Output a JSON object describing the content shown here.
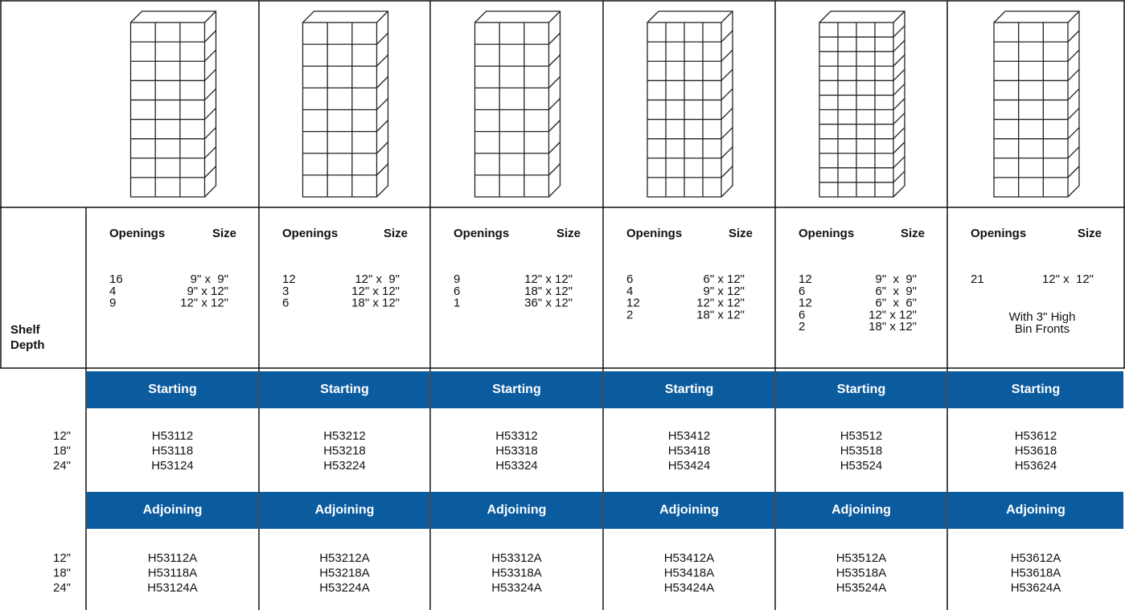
{
  "header": {
    "shelf_depth": [
      "Shelf",
      "Depth"
    ]
  },
  "columns": [
    {
      "openings_heading": "Openings",
      "size_heading": "Size",
      "openings": [
        {
          "count": "16",
          "size": "9\" x  9\""
        },
        {
          "count": "4",
          "size": "9\" x 12\""
        },
        {
          "count": "9",
          "size": "12\" x 12\""
        }
      ]
    },
    {
      "openings_heading": "Openings",
      "size_heading": "Size",
      "openings": [
        {
          "count": "12",
          "size": "12\" x  9\""
        },
        {
          "count": "3",
          "size": "12\" x 12\""
        },
        {
          "count": "6",
          "size": "18\" x 12\""
        }
      ]
    },
    {
      "openings_heading": "Openings",
      "size_heading": "Size",
      "openings": [
        {
          "count": "9",
          "size": "12\" x 12\""
        },
        {
          "count": "6",
          "size": "18\" x 12\""
        },
        {
          "count": "1",
          "size": "36\" x 12\""
        }
      ]
    },
    {
      "openings_heading": "Openings",
      "size_heading": "Size",
      "openings": [
        {
          "count": "6",
          "size": "6\" x 12\""
        },
        {
          "count": "4",
          "size": "9\" x 12\""
        },
        {
          "count": "12",
          "size": "12\" x 12\""
        },
        {
          "count": "2",
          "size": "18\" x 12\""
        }
      ]
    },
    {
      "openings_heading": "Openings",
      "size_heading": "Size",
      "openings": [
        {
          "count": "12",
          "size": "9\"  x  9\""
        },
        {
          "count": "6",
          "size": "6\"  x  9\""
        },
        {
          "count": "12",
          "size": "6\"  x  6\""
        },
        {
          "count": "6",
          "size": "12\" x 12\""
        },
        {
          "count": "2",
          "size": "18\" x 12\""
        }
      ]
    },
    {
      "openings_heading": "Openings",
      "size_heading": "Size",
      "openings": [
        {
          "count": "21",
          "size": "12\" x  12\""
        }
      ],
      "note": [
        "With 3\" High",
        "Bin Fronts"
      ]
    }
  ],
  "sections": [
    {
      "headers": [
        "Starting",
        "Starting",
        "Starting",
        "Starting",
        "Starting",
        "Starting"
      ],
      "depths": [
        "12\"",
        "18\"",
        "24\""
      ],
      "models": [
        [
          "H53112",
          "H53118",
          "H53124"
        ],
        [
          "H53212",
          "H53218",
          "H53224"
        ],
        [
          "H53312",
          "H53318",
          "H53324"
        ],
        [
          "H53412",
          "H53418",
          "H53424"
        ],
        [
          "H53512",
          "H53518",
          "H53524"
        ],
        [
          "H53612",
          "H53618",
          "H53624"
        ]
      ]
    },
    {
      "headers": [
        "Adjoining",
        "Adjoining",
        "Adjoining",
        "Adjoining",
        "Adjoining",
        "Adjoining"
      ],
      "depths": [
        "12\"",
        "18\"",
        "24\""
      ],
      "models": [
        [
          "H53112A",
          "H53118A",
          "H53124A"
        ],
        [
          "H53212A",
          "H53218A",
          "H53224A"
        ],
        [
          "H53312A",
          "H53318A",
          "H53324A"
        ],
        [
          "H53412A",
          "H53418A",
          "H53424A"
        ],
        [
          "H53512A",
          "H53518A",
          "H53524A"
        ],
        [
          "H53612A",
          "H53618A",
          "H53624A"
        ]
      ]
    }
  ]
}
